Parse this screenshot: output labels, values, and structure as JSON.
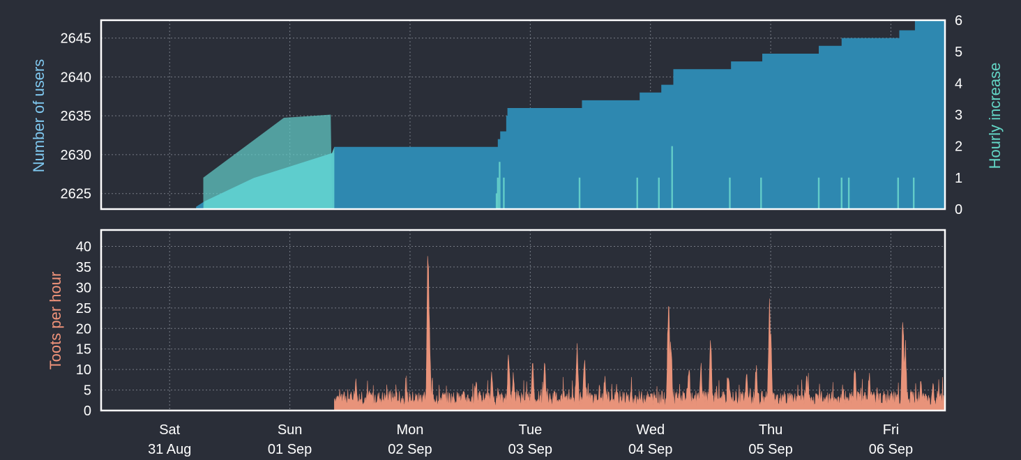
{
  "chart_data": [
    {
      "type": "area",
      "panel": "top",
      "ylabel": "Number of users",
      "y2label": "Hourly increase",
      "ylim": [
        2623,
        2647.3
      ],
      "y2lim": [
        0,
        6
      ],
      "yticks": [
        2625,
        2630,
        2635,
        2640,
        2645
      ],
      "y2ticks": [
        0,
        1,
        2,
        3,
        4,
        5,
        6
      ],
      "xlim_days": [
        -0.57,
        6.45
      ],
      "grid": true,
      "colors": {
        "users": "#2e88b0",
        "increase": "#63ccc8",
        "axis_users": "#7fc7ee",
        "axis_increase": "#63d6c6"
      },
      "series": [
        {
          "name": "Number of users",
          "step": [
            [
              0.22,
              2623.3
            ],
            [
              0.29,
              2624.0
            ],
            [
              0.7,
              2627.0
            ],
            [
              1.35,
              2630.2
            ],
            [
              1.37,
              2631.0
            ],
            [
              2.72,
              2631.0
            ],
            [
              2.73,
              2632.0
            ],
            [
              2.75,
              2633.0
            ],
            [
              2.8,
              2635.0
            ],
            [
              2.81,
              2636.0
            ],
            [
              3.42,
              2636.0
            ],
            [
              3.43,
              2637.0
            ],
            [
              3.9,
              2637.0
            ],
            [
              3.91,
              2638.0
            ],
            [
              4.08,
              2638.0
            ],
            [
              4.09,
              2639.0
            ],
            [
              4.18,
              2639.0
            ],
            [
              4.19,
              2641.0
            ],
            [
              4.66,
              2641.0
            ],
            [
              4.67,
              2642.0
            ],
            [
              4.92,
              2642.0
            ],
            [
              4.93,
              2643.0
            ],
            [
              5.39,
              2643.0
            ],
            [
              5.4,
              2644.0
            ],
            [
              5.58,
              2644.0
            ],
            [
              5.59,
              2645.0
            ],
            [
              6.06,
              2645.0
            ],
            [
              6.07,
              2646.0
            ],
            [
              6.19,
              2646.0
            ],
            [
              6.2,
              2647.3
            ]
          ]
        },
        {
          "name": "Hourly increase",
          "plateau": [
            [
              0.28,
              1.0
            ],
            [
              0.95,
              2.9
            ],
            [
              1.34,
              3.0
            ]
          ],
          "spikes": [
            [
              2.72,
              0.5
            ],
            [
              2.73,
              1.0
            ],
            [
              2.745,
              1.5
            ],
            [
              2.78,
              1.0
            ],
            [
              3.41,
              1.0
            ],
            [
              3.89,
              1.0
            ],
            [
              4.07,
              1.0
            ],
            [
              4.18,
              2.0
            ],
            [
              4.66,
              1.0
            ],
            [
              4.92,
              1.0
            ],
            [
              5.4,
              1.0
            ],
            [
              5.59,
              1.0
            ],
            [
              5.65,
              1.0
            ],
            [
              6.06,
              1.0
            ],
            [
              6.19,
              1.0
            ]
          ]
        }
      ]
    },
    {
      "type": "area",
      "panel": "bottom",
      "ylabel": "Toots per hour",
      "ylim": [
        0,
        44
      ],
      "yticks": [
        0,
        5,
        10,
        15,
        20,
        25,
        30,
        35,
        40
      ],
      "xlim_days": [
        -0.57,
        6.45
      ],
      "grid": true,
      "colors": {
        "toots": "#e8937a",
        "axis_toots": "#f0937a"
      },
      "x_labels": [
        {
          "day": "Sat",
          "date": "31 Aug"
        },
        {
          "day": "Sun",
          "date": "01 Sep"
        },
        {
          "day": "Mon",
          "date": "02 Sep"
        },
        {
          "day": "Tue",
          "date": "03 Sep"
        },
        {
          "day": "Wed",
          "date": "04 Sep"
        },
        {
          "day": "Thu",
          "date": "05 Sep"
        },
        {
          "day": "Fri",
          "date": "06 Sep"
        }
      ],
      "series": [
        {
          "name": "Toots per hour",
          "start_day": 1.37,
          "base_level": 3,
          "peaks": [
            [
              2.15,
              43.5
            ],
            [
              2.155,
              30
            ],
            [
              2.16,
              23
            ],
            [
              2.82,
              16
            ],
            [
              2.86,
              10
            ],
            [
              3.02,
              12
            ],
            [
              3.39,
              18
            ],
            [
              3.45,
              14
            ],
            [
              4.15,
              30
            ],
            [
              4.17,
              20
            ],
            [
              4.5,
              19
            ],
            [
              4.99,
              29
            ],
            [
              5.0,
              20
            ],
            [
              6.1,
              26
            ],
            [
              6.12,
              18
            ],
            [
              2.68,
              10
            ],
            [
              3.12,
              12
            ],
            [
              3.62,
              9
            ],
            [
              4.32,
              12
            ],
            [
              4.42,
              12
            ],
            [
              4.65,
              10
            ],
            [
              4.8,
              10
            ],
            [
              5.3,
              9
            ],
            [
              5.7,
              12
            ],
            [
              5.82,
              10
            ],
            [
              6.25,
              8
            ],
            [
              6.35,
              7
            ],
            [
              4.88,
              12
            ],
            [
              1.55,
              8
            ],
            [
              2.55,
              8
            ]
          ]
        }
      ]
    }
  ]
}
